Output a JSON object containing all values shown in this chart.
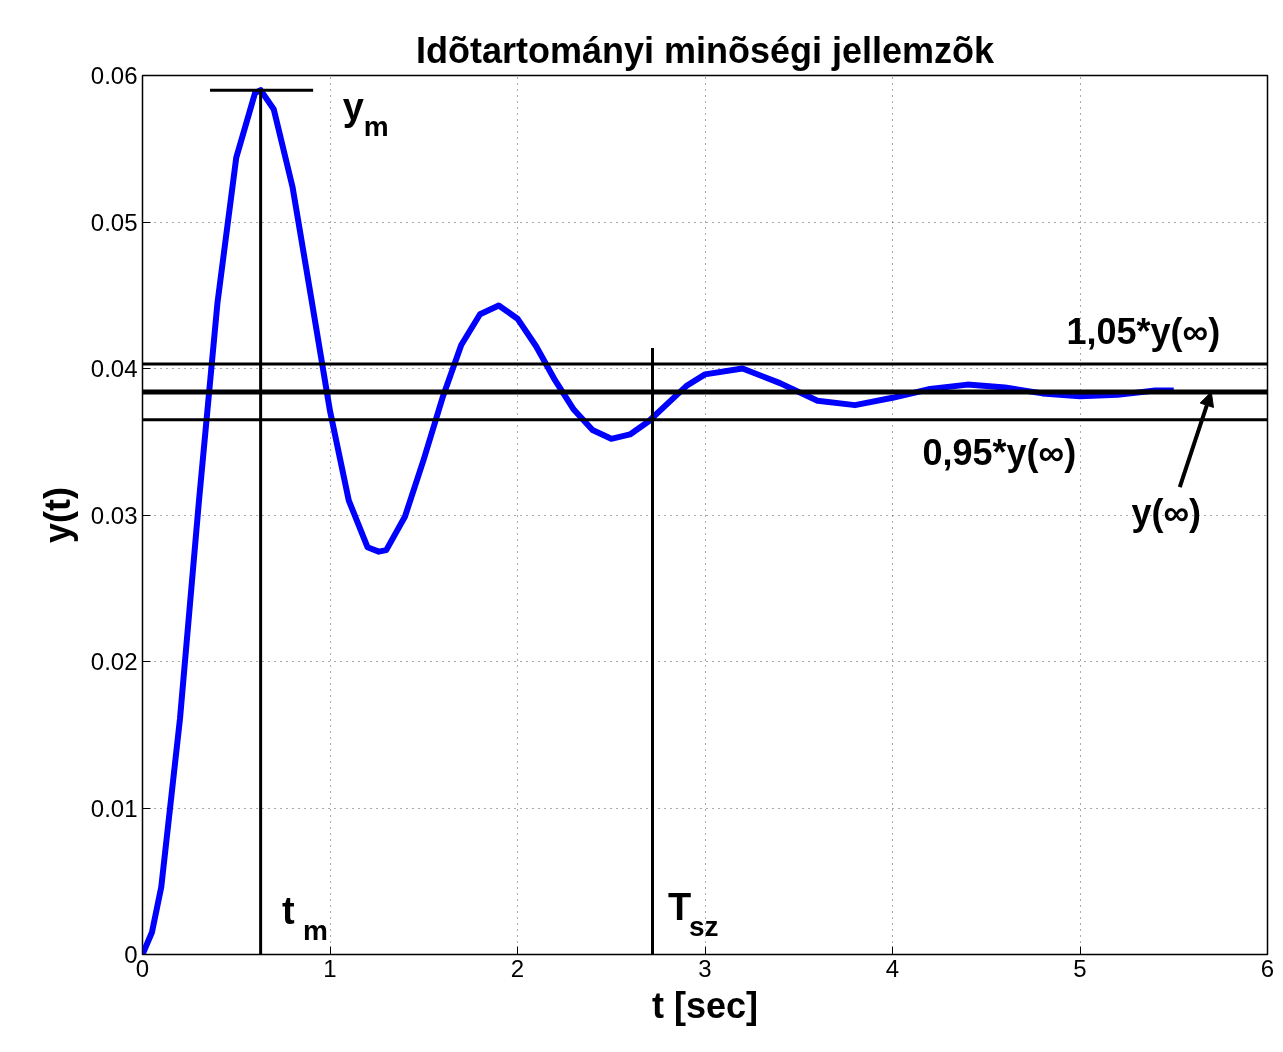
{
  "chart_data": {
    "type": "line",
    "title": "Idõtartományi minõségi jellemzõk",
    "xlabel": "t [sec]",
    "ylabel": "y(t)",
    "xlim": [
      0,
      6
    ],
    "xticks": [
      0,
      1,
      2,
      3,
      4,
      5,
      6
    ],
    "ylim": [
      0,
      0.06
    ],
    "yticks": [
      0,
      0.01,
      0.02,
      0.03,
      0.04,
      0.05,
      0.06
    ],
    "grid": true,
    "marker": "none",
    "line_style": "solid",
    "series": [
      {
        "color": "#0000ff",
        "x": [
          0,
          0.05,
          0.1,
          0.2,
          0.3,
          0.4,
          0.5,
          0.6,
          0.63,
          0.7,
          0.8,
          0.9,
          1.0,
          1.1,
          1.2,
          1.26,
          1.3,
          1.4,
          1.5,
          1.6,
          1.7,
          1.8,
          1.9,
          2.0,
          2.1,
          2.2,
          2.3,
          2.4,
          2.5,
          2.6,
          2.7,
          2.8,
          2.9,
          3.0,
          3.2,
          3.4,
          3.6,
          3.8,
          4.0,
          4.2,
          4.4,
          4.6,
          4.8,
          5.0,
          5.2,
          5.4,
          5.5
        ],
        "values": [
          0,
          0.0015,
          0.0046,
          0.0161,
          0.0308,
          0.0445,
          0.0544,
          0.0588,
          0.059,
          0.0577,
          0.0524,
          0.0448,
          0.0371,
          0.031,
          0.0278,
          0.0275,
          0.0276,
          0.0299,
          0.0338,
          0.038,
          0.0416,
          0.0437,
          0.0443,
          0.0434,
          0.0415,
          0.0392,
          0.0372,
          0.0358,
          0.0352,
          0.0355,
          0.0364,
          0.0376,
          0.0388,
          0.0396,
          0.04,
          0.039,
          0.0378,
          0.0375,
          0.038,
          0.0386,
          0.0389,
          0.0387,
          0.0383,
          0.0381,
          0.0382,
          0.0385,
          0.0385
        ]
      },
      {
        "color": "#000000",
        "x": [
          0.63,
          0.63
        ],
        "values": [
          0,
          0.059
        ]
      },
      {
        "color": "#000000",
        "x": [
          0.36,
          0.91
        ],
        "values": [
          0.059,
          0.059
        ]
      },
      {
        "color": "#000000",
        "x": [
          2.72,
          2.72
        ],
        "values": [
          0,
          0.0414
        ]
      }
    ],
    "ref_lines": [
      {
        "axis": "y",
        "value": 0.0403,
        "label": "1,05*y(∞)",
        "color": "#000000"
      },
      {
        "axis": "y",
        "value": 0.0384,
        "label": "y(∞)",
        "color": "#000000"
      },
      {
        "axis": "y",
        "value": 0.0365,
        "label": "0,95*y(∞)",
        "color": "#000000"
      }
    ],
    "annotations": [
      "y$_{m}$",
      "t$_{m}$",
      "T$_{sz}$"
    ]
  }
}
